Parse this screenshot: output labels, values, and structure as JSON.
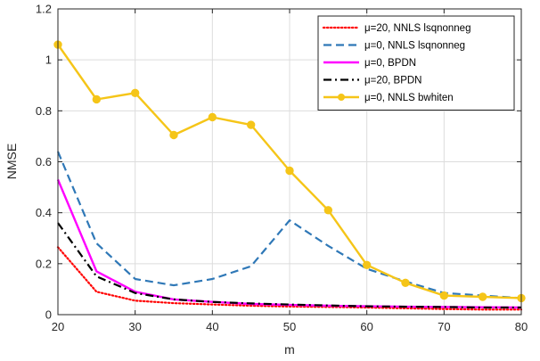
{
  "chart_data": {
    "type": "line",
    "xlabel": "m",
    "ylabel": "NMSE",
    "xlim": [
      20,
      80
    ],
    "ylim": [
      0,
      1.2
    ],
    "xticks": [
      "20",
      "30",
      "40",
      "50",
      "60",
      "70",
      "80"
    ],
    "yticks": [
      "0",
      "0.2",
      "0.4",
      "0.6",
      "0.8",
      "1",
      "1.2"
    ],
    "grid": true,
    "legend_position": "top-right",
    "series": [
      {
        "name": "μ=20, NNLS lsqnonneg",
        "color": "#ff0000",
        "style": "dotted",
        "x": [
          20,
          25,
          30,
          35,
          40,
          45,
          50,
          55,
          60,
          65,
          70,
          75,
          80
        ],
        "values": [
          0.265,
          0.09,
          0.055,
          0.045,
          0.04,
          0.035,
          0.032,
          0.03,
          0.028,
          0.025,
          0.022,
          0.02,
          0.02
        ]
      },
      {
        "name": "μ=0, NNLS lsqnonneg",
        "color": "#2f78b7",
        "style": "dashed",
        "x": [
          20,
          25,
          30,
          35,
          40,
          45,
          50,
          55,
          60,
          65,
          70,
          75,
          80
        ],
        "values": [
          0.64,
          0.28,
          0.14,
          0.115,
          0.14,
          0.19,
          0.37,
          0.27,
          0.18,
          0.13,
          0.085,
          0.075,
          0.065
        ]
      },
      {
        "name": "μ=0, BPDN",
        "color": "#ff00ff",
        "style": "solid",
        "x": [
          20,
          25,
          30,
          35,
          40,
          45,
          50,
          55,
          60,
          65,
          70,
          75,
          80
        ],
        "values": [
          0.53,
          0.17,
          0.09,
          0.06,
          0.05,
          0.042,
          0.038,
          0.035,
          0.033,
          0.031,
          0.03,
          0.029,
          0.028
        ]
      },
      {
        "name": "μ=20, BPDN",
        "color": "#000000",
        "style": "dashdot",
        "x": [
          20,
          25,
          30,
          35,
          40,
          45,
          50,
          55,
          60,
          65,
          70,
          75,
          80
        ],
        "values": [
          0.36,
          0.15,
          0.085,
          0.06,
          0.05,
          0.044,
          0.04,
          0.036,
          0.033,
          0.031,
          0.03,
          0.028,
          0.028
        ]
      },
      {
        "name": "μ=0, NNLS bwhiten",
        "color": "#f5c518",
        "style": "solid-marker",
        "x": [
          20,
          25,
          30,
          35,
          40,
          45,
          50,
          55,
          60,
          65,
          70,
          75,
          80
        ],
        "values": [
          1.06,
          0.845,
          0.87,
          0.705,
          0.775,
          0.745,
          0.565,
          0.41,
          0.195,
          0.125,
          0.075,
          0.07,
          0.065
        ]
      }
    ]
  }
}
